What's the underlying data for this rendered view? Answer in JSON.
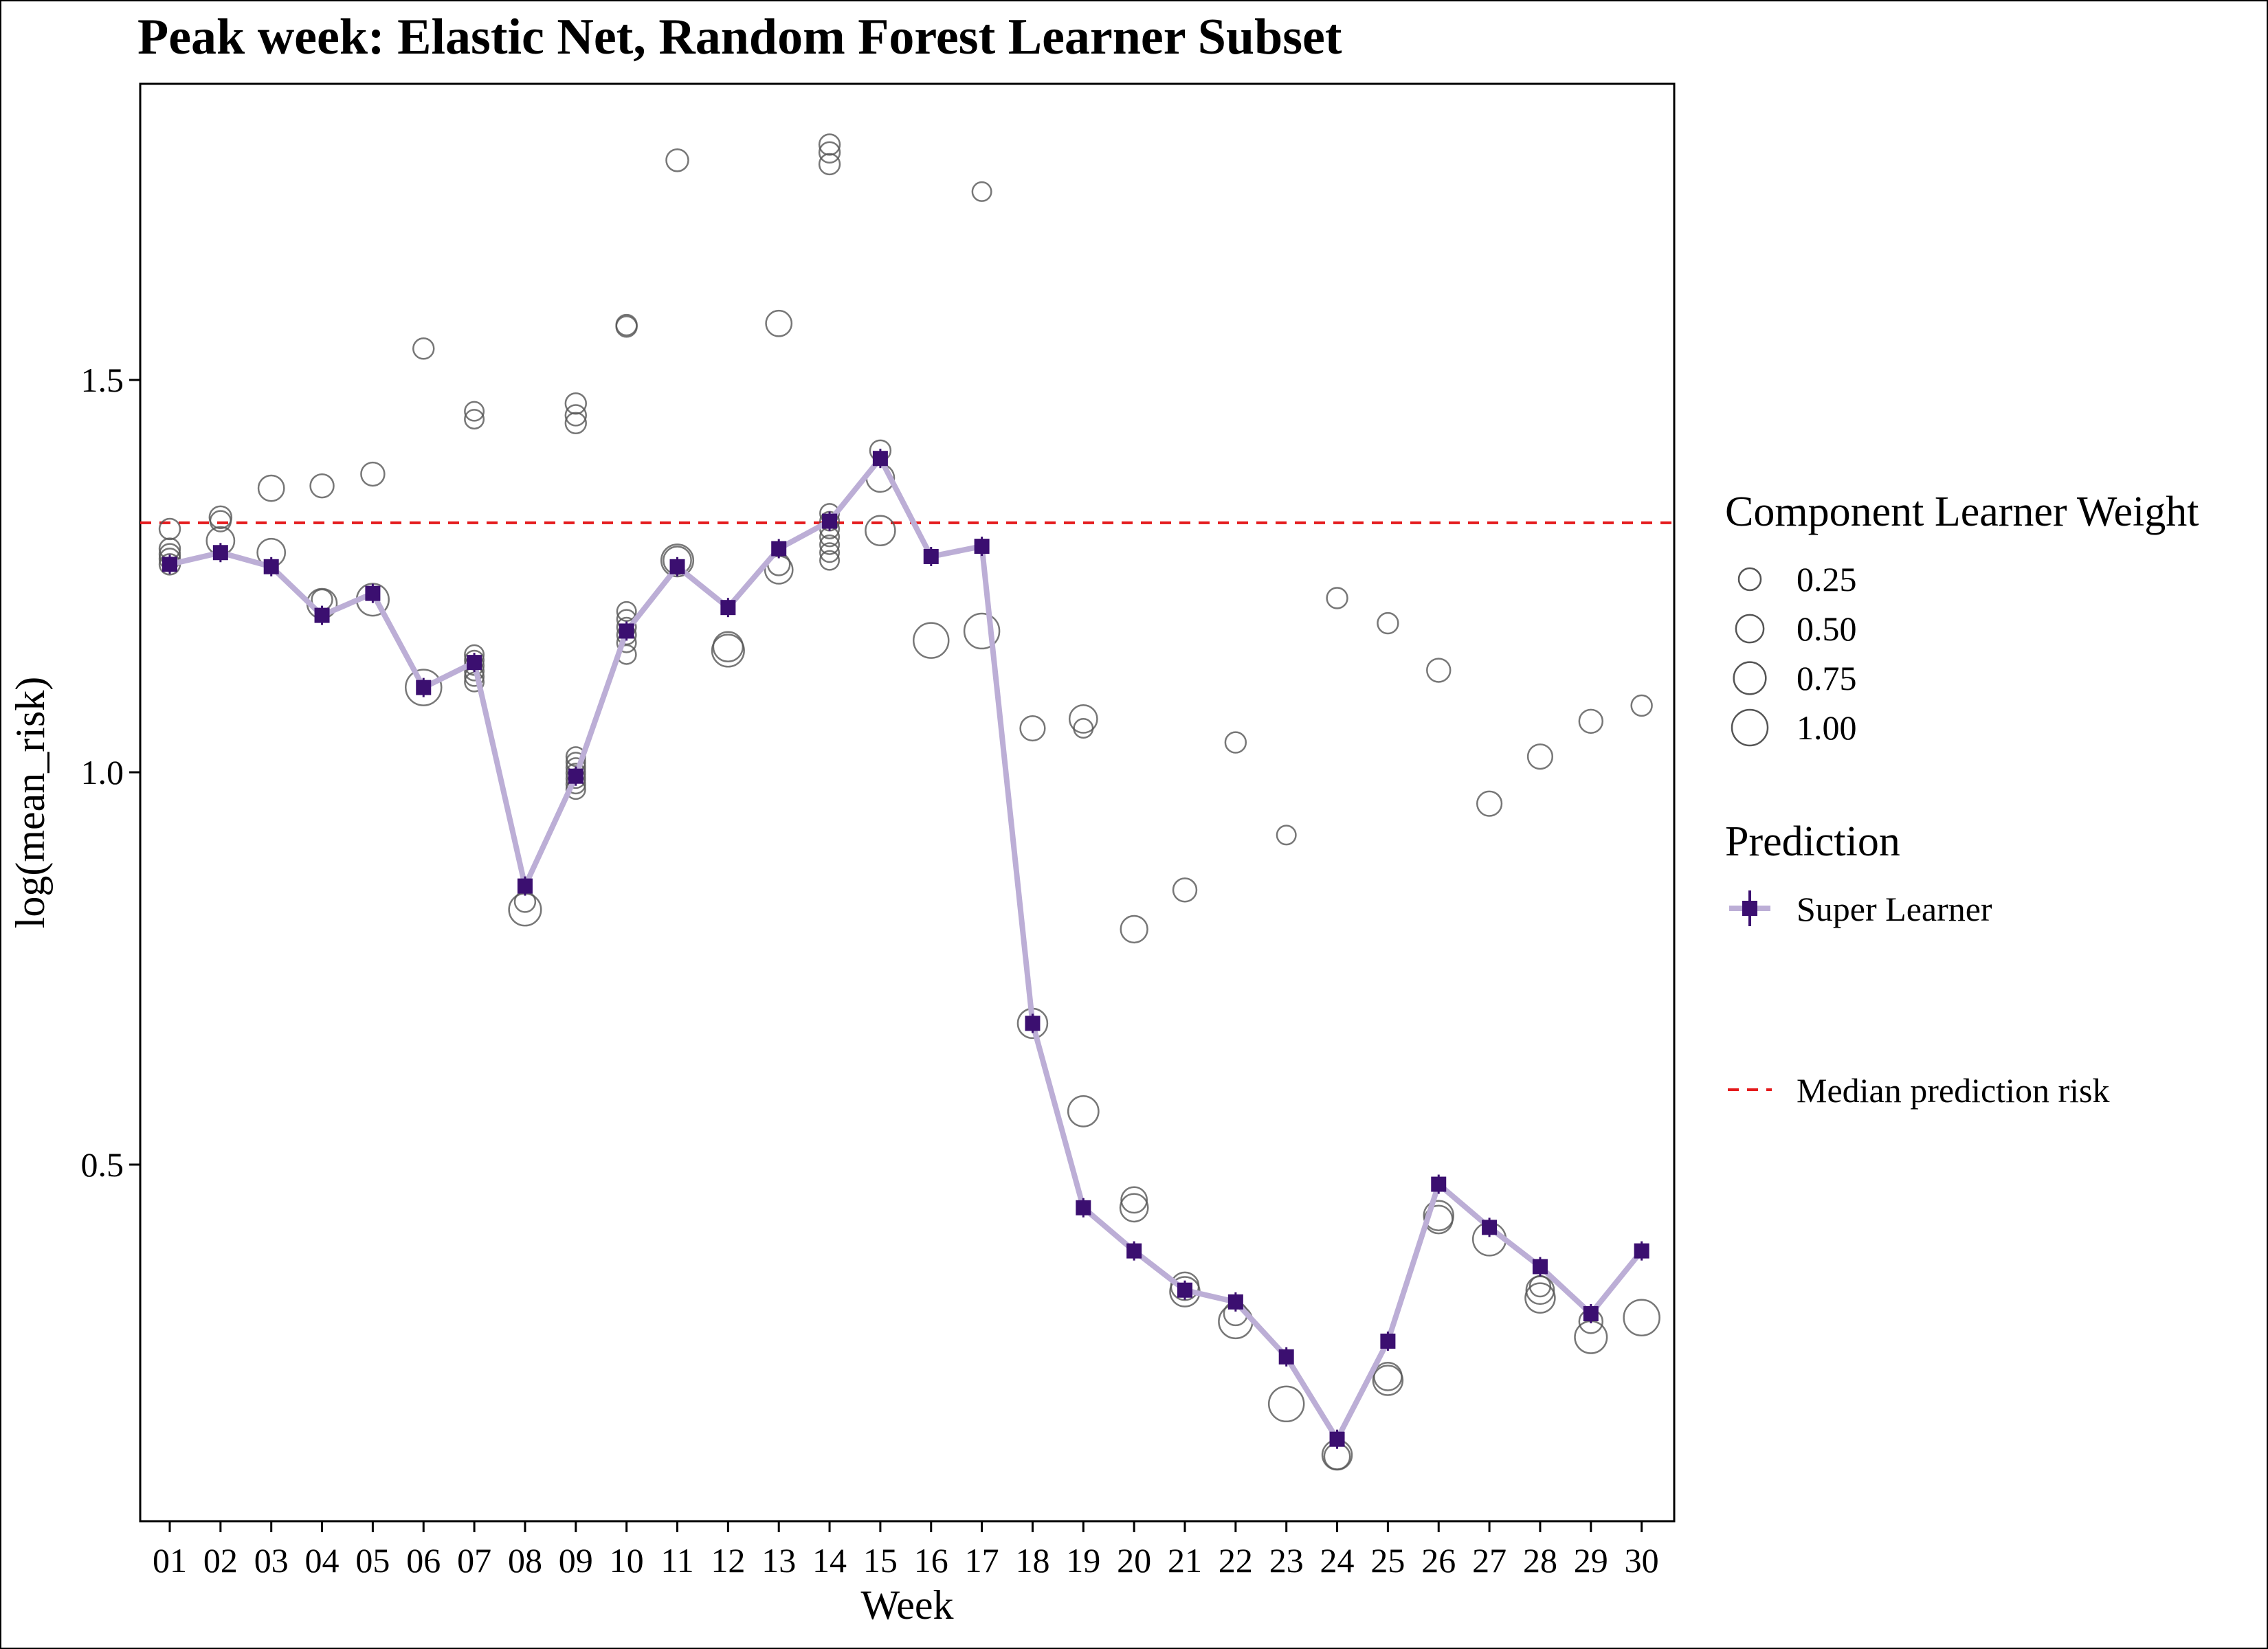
{
  "chart_data": {
    "type": "scatter",
    "title": "Peak week: Elastic Net, Random Forest Learner Subset",
    "xlabel": "Week",
    "ylabel": "log(mean_risk)",
    "categories": [
      "01",
      "02",
      "03",
      "04",
      "05",
      "06",
      "07",
      "08",
      "09",
      "10",
      "11",
      "12",
      "13",
      "14",
      "15",
      "16",
      "17",
      "18",
      "19",
      "20",
      "21",
      "22",
      "23",
      "24",
      "25",
      "26",
      "27",
      "28",
      "29",
      "30"
    ],
    "yticks": [
      0.5,
      1.0,
      1.5
    ],
    "ytick_labels": [
      "0.5",
      "1.0",
      "1.5"
    ],
    "ylim": [
      0.08,
      1.87
    ],
    "grid": false,
    "legend_position": "right",
    "median_line": {
      "name": "Median prediction risk",
      "y": 1.318,
      "color": "#e41a1c"
    },
    "super_learner": {
      "name": "Super Learner",
      "color": "#3b0f70",
      "line_color": "#bcaed6",
      "values": [
        1.265,
        1.28,
        1.262,
        1.2,
        1.228,
        1.108,
        1.14,
        0.855,
        0.995,
        1.18,
        1.262,
        1.21,
        1.285,
        1.32,
        1.4,
        1.275,
        1.288,
        0.68,
        0.445,
        0.39,
        0.34,
        0.325,
        0.255,
        0.15,
        0.275,
        0.475,
        0.42,
        0.37,
        0.31,
        0.39
      ]
    },
    "component_learners": {
      "name": "Component Learner Weight",
      "points": [
        {
          "week": "01",
          "y": 1.31,
          "w": 0.2
        },
        {
          "week": "01",
          "y": 1.285,
          "w": 0.2
        },
        {
          "week": "01",
          "y": 1.278,
          "w": 0.2
        },
        {
          "week": "01",
          "y": 1.272,
          "w": 0.2
        },
        {
          "week": "01",
          "y": 1.265,
          "w": 0.2
        },
        {
          "week": "02",
          "y": 1.325,
          "w": 0.25
        },
        {
          "week": "02",
          "y": 1.32,
          "w": 0.2
        },
        {
          "week": "02",
          "y": 1.295,
          "w": 0.5
        },
        {
          "week": "03",
          "y": 1.362,
          "w": 0.4
        },
        {
          "week": "03",
          "y": 1.28,
          "w": 0.5
        },
        {
          "week": "04",
          "y": 1.365,
          "w": 0.3
        },
        {
          "week": "04",
          "y": 1.22,
          "w": 0.2
        },
        {
          "week": "04",
          "y": 1.215,
          "w": 0.6
        },
        {
          "week": "05",
          "y": 1.38,
          "w": 0.3
        },
        {
          "week": "05",
          "y": 1.22,
          "w": 0.75
        },
        {
          "week": "06",
          "y": 1.54,
          "w": 0.2
        },
        {
          "week": "06",
          "y": 1.108,
          "w": 1.0
        },
        {
          "week": "07",
          "y": 1.46,
          "w": 0.15
        },
        {
          "week": "07",
          "y": 1.45,
          "w": 0.15
        },
        {
          "week": "07",
          "y": 1.15,
          "w": 0.15
        },
        {
          "week": "07",
          "y": 1.143,
          "w": 0.15
        },
        {
          "week": "07",
          "y": 1.136,
          "w": 0.15
        },
        {
          "week": "07",
          "y": 1.129,
          "w": 0.15
        },
        {
          "week": "07",
          "y": 1.122,
          "w": 0.15
        },
        {
          "week": "07",
          "y": 1.115,
          "w": 0.15
        },
        {
          "week": "08",
          "y": 0.835,
          "w": 0.2
        },
        {
          "week": "08",
          "y": 0.825,
          "w": 0.75
        },
        {
          "week": "09",
          "y": 1.47,
          "w": 0.2
        },
        {
          "week": "09",
          "y": 1.455,
          "w": 0.2
        },
        {
          "week": "09",
          "y": 1.445,
          "w": 0.2
        },
        {
          "week": "09",
          "y": 1.02,
          "w": 0.15
        },
        {
          "week": "09",
          "y": 1.013,
          "w": 0.15
        },
        {
          "week": "09",
          "y": 1.006,
          "w": 0.15
        },
        {
          "week": "09",
          "y": 0.999,
          "w": 0.15
        },
        {
          "week": "09",
          "y": 0.992,
          "w": 0.15
        },
        {
          "week": "09",
          "y": 0.985,
          "w": 0.15
        },
        {
          "week": "09",
          "y": 0.978,
          "w": 0.15
        },
        {
          "week": "10",
          "y": 1.57,
          "w": 0.2
        },
        {
          "week": "10",
          "y": 1.568,
          "w": 0.2
        },
        {
          "week": "10",
          "y": 1.205,
          "w": 0.15
        },
        {
          "week": "10",
          "y": 1.195,
          "w": 0.15
        },
        {
          "week": "10",
          "y": 1.185,
          "w": 0.15
        },
        {
          "week": "10",
          "y": 1.175,
          "w": 0.15
        },
        {
          "week": "10",
          "y": 1.165,
          "w": 0.15
        },
        {
          "week": "10",
          "y": 1.15,
          "w": 0.15
        },
        {
          "week": "11",
          "y": 1.78,
          "w": 0.25
        },
        {
          "week": "11",
          "y": 1.27,
          "w": 0.75
        },
        {
          "week": "11",
          "y": 1.27,
          "w": 0.5
        },
        {
          "week": "12",
          "y": 1.16,
          "w": 0.6
        },
        {
          "week": "12",
          "y": 1.155,
          "w": 0.75
        },
        {
          "week": "13",
          "y": 1.572,
          "w": 0.4
        },
        {
          "week": "13",
          "y": 1.265,
          "w": 0.25
        },
        {
          "week": "13",
          "y": 1.258,
          "w": 0.5
        },
        {
          "week": "14",
          "y": 1.8,
          "w": 0.2
        },
        {
          "week": "14",
          "y": 1.79,
          "w": 0.2
        },
        {
          "week": "14",
          "y": 1.775,
          "w": 0.2
        },
        {
          "week": "14",
          "y": 1.33,
          "w": 0.15
        },
        {
          "week": "14",
          "y": 1.32,
          "w": 0.15
        },
        {
          "week": "14",
          "y": 1.31,
          "w": 0.15
        },
        {
          "week": "14",
          "y": 1.3,
          "w": 0.15
        },
        {
          "week": "14",
          "y": 1.29,
          "w": 0.15
        },
        {
          "week": "14",
          "y": 1.28,
          "w": 0.15
        },
        {
          "week": "14",
          "y": 1.27,
          "w": 0.15
        },
        {
          "week": "15",
          "y": 1.41,
          "w": 0.2
        },
        {
          "week": "15",
          "y": 1.375,
          "w": 0.5
        },
        {
          "week": "15",
          "y": 1.308,
          "w": 0.6
        },
        {
          "week": "16",
          "y": 1.168,
          "w": 0.95
        },
        {
          "week": "17",
          "y": 1.74,
          "w": 0.15
        },
        {
          "week": "17",
          "y": 1.18,
          "w": 0.95
        },
        {
          "week": "18",
          "y": 1.056,
          "w": 0.35
        },
        {
          "week": "18",
          "y": 0.68,
          "w": 0.6
        },
        {
          "week": "19",
          "y": 1.068,
          "w": 0.5
        },
        {
          "week": "19",
          "y": 1.056,
          "w": 0.15
        },
        {
          "week": "19",
          "y": 0.568,
          "w": 0.65
        },
        {
          "week": "20",
          "y": 0.8,
          "w": 0.45
        },
        {
          "week": "20",
          "y": 0.455,
          "w": 0.4
        },
        {
          "week": "20",
          "y": 0.445,
          "w": 0.5
        },
        {
          "week": "21",
          "y": 0.85,
          "w": 0.3
        },
        {
          "week": "21",
          "y": 0.345,
          "w": 0.5
        },
        {
          "week": "21",
          "y": 0.338,
          "w": 0.6
        },
        {
          "week": "22",
          "y": 1.038,
          "w": 0.2
        },
        {
          "week": "22",
          "y": 0.31,
          "w": 0.3
        },
        {
          "week": "22",
          "y": 0.3,
          "w": 0.85
        },
        {
          "week": "23",
          "y": 0.92,
          "w": 0.15
        },
        {
          "week": "23",
          "y": 0.195,
          "w": 0.95
        },
        {
          "week": "24",
          "y": 1.222,
          "w": 0.2
        },
        {
          "week": "24",
          "y": 0.13,
          "w": 0.6
        },
        {
          "week": "24",
          "y": 0.128,
          "w": 0.4
        },
        {
          "week": "25",
          "y": 1.19,
          "w": 0.2
        },
        {
          "week": "25",
          "y": 0.23,
          "w": 0.5
        },
        {
          "week": "25",
          "y": 0.225,
          "w": 0.6
        },
        {
          "week": "26",
          "y": 1.13,
          "w": 0.3
        },
        {
          "week": "26",
          "y": 0.435,
          "w": 0.6
        },
        {
          "week": "26",
          "y": 0.43,
          "w": 0.5
        },
        {
          "week": "27",
          "y": 0.96,
          "w": 0.35
        },
        {
          "week": "27",
          "y": 0.405,
          "w": 0.8
        },
        {
          "week": "28",
          "y": 1.02,
          "w": 0.35
        },
        {
          "week": "28",
          "y": 0.345,
          "w": 0.2
        },
        {
          "week": "28",
          "y": 0.34,
          "w": 0.5
        },
        {
          "week": "28",
          "y": 0.33,
          "w": 0.6
        },
        {
          "week": "29",
          "y": 1.065,
          "w": 0.3
        },
        {
          "week": "29",
          "y": 0.3,
          "w": 0.3
        },
        {
          "week": "29",
          "y": 0.28,
          "w": 0.75
        },
        {
          "week": "30",
          "y": 1.085,
          "w": 0.2
        },
        {
          "week": "30",
          "y": 0.305,
          "w": 1.0
        }
      ]
    },
    "legend": {
      "size_title": "Component Learner Weight",
      "size_items": [
        {
          "label": "0.25",
          "w": 0.25
        },
        {
          "label": "0.50",
          "w": 0.5
        },
        {
          "label": "0.75",
          "w": 0.75
        },
        {
          "label": "1.00",
          "w": 1.0
        }
      ],
      "prediction_title": "Prediction",
      "prediction_label": "Super Learner",
      "median_label": "Median prediction risk"
    }
  }
}
